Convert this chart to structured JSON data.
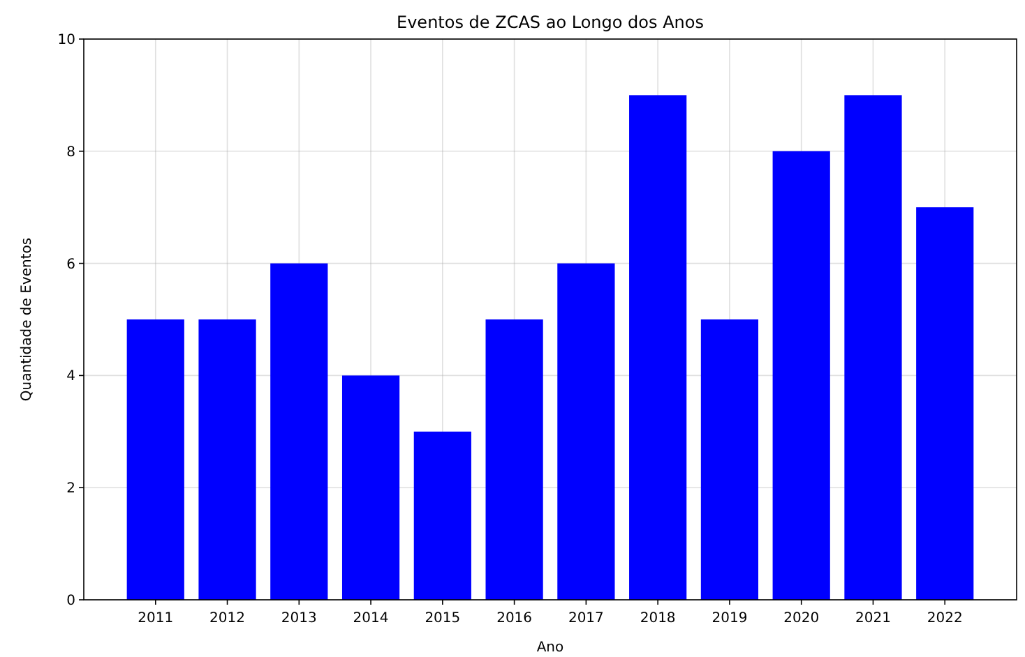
{
  "chart_data": {
    "type": "bar",
    "title": "Eventos de ZCAS ao Longo dos Anos",
    "xlabel": "Ano",
    "ylabel": "Quantidade de Eventos",
    "categories": [
      "2011",
      "2012",
      "2013",
      "2014",
      "2015",
      "2016",
      "2017",
      "2018",
      "2019",
      "2020",
      "2021",
      "2022"
    ],
    "values": [
      5,
      5,
      6,
      4,
      3,
      5,
      6,
      9,
      5,
      8,
      9,
      7
    ],
    "color": "#0000ff",
    "ylim": [
      0,
      10
    ],
    "yticks": [
      0,
      2,
      4,
      6,
      8,
      10
    ],
    "grid": true
  }
}
